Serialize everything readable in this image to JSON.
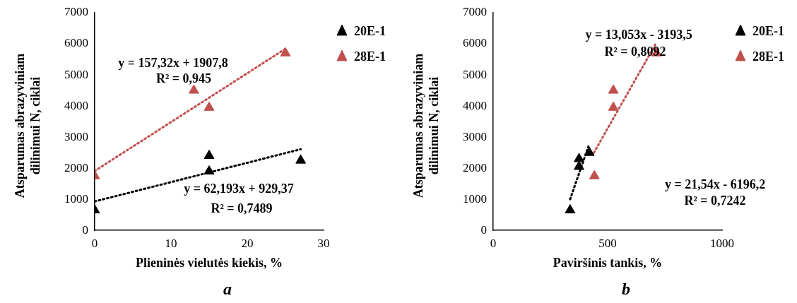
{
  "chart_data": [
    {
      "type": "scatter",
      "title": "a",
      "xlabel": "Plieninės vielutės kiekis, %",
      "ylabel": "Atsparumas abrazyviniam dilinimui N, ciklai",
      "xlim": [
        0,
        30
      ],
      "xticks": [
        0,
        10,
        20,
        30
      ],
      "ylim": [
        0,
        7000
      ],
      "yticks": [
        0,
        1000,
        2000,
        3000,
        4000,
        5000,
        6000,
        7000
      ],
      "grid": false,
      "legend": "top right",
      "marker": "triangle",
      "series": [
        {
          "name": "20E-1",
          "color": "#000000",
          "x": [
            0,
            15,
            15,
            27
          ],
          "values": [
            650,
            2400,
            1900,
            2250
          ]
        },
        {
          "name": "28E-1",
          "color": "#c0504d",
          "x": [
            0,
            13,
            15,
            25
          ],
          "values": [
            1750,
            4500,
            3950,
            5700
          ]
        },
        {
          "type": "line",
          "color": "#000000",
          "line_style": "dotted",
          "marker": "none",
          "x": [
            0,
            27
          ],
          "values": [
            930,
            2610
          ]
        },
        {
          "type": "line",
          "color": "#c0504d",
          "line_style": "dotted",
          "marker": "none",
          "x": [
            0,
            25
          ],
          "values": [
            1910,
            5840
          ]
        }
      ],
      "annotations": [
        "y = 157,32x + 1907,8",
        "R² = 0,945",
        "y = 62,193x + 929,37",
        "R² = 0,7489"
      ]
    },
    {
      "type": "scatter",
      "title": "b",
      "xlabel": "Paviršinis tankis, %",
      "ylabel": "Atsparumas abrazyviniam dilinimui N, ciklai",
      "xlim": [
        0,
        1000
      ],
      "xticks": [
        0,
        500,
        1000
      ],
      "ylim": [
        0,
        7000
      ],
      "yticks": [
        0,
        1000,
        2000,
        3000,
        4000,
        5000,
        6000,
        7000
      ],
      "grid": false,
      "legend": "top right",
      "marker": "triangle",
      "series": [
        {
          "name": "20E-1",
          "color": "#000000",
          "x": [
            336,
            375,
            375,
            420
          ],
          "values": [
            650,
            2050,
            2300,
            2500
          ]
        },
        {
          "name": "28E-1",
          "color": "#c0504d",
          "x": [
            442,
            525,
            525,
            714
          ],
          "values": [
            1750,
            4500,
            3950,
            5700
          ]
        },
        {
          "type": "line",
          "color": "#000000",
          "line_style": "dotted",
          "marker": "none",
          "x": [
            336,
            416
          ],
          "values": [
            1000,
            2700
          ]
        },
        {
          "type": "line",
          "color": "#c0504d",
          "line_style": "dotted",
          "marker": "none",
          "x": [
            440,
            710
          ],
          "values": [
            2500,
            6000
          ]
        }
      ],
      "annotations": [
        "y = 13,053x - 3193,5",
        "R² = 0,8092",
        "y = 21,54x - 6196,2",
        "R² = 0,7242"
      ]
    }
  ]
}
